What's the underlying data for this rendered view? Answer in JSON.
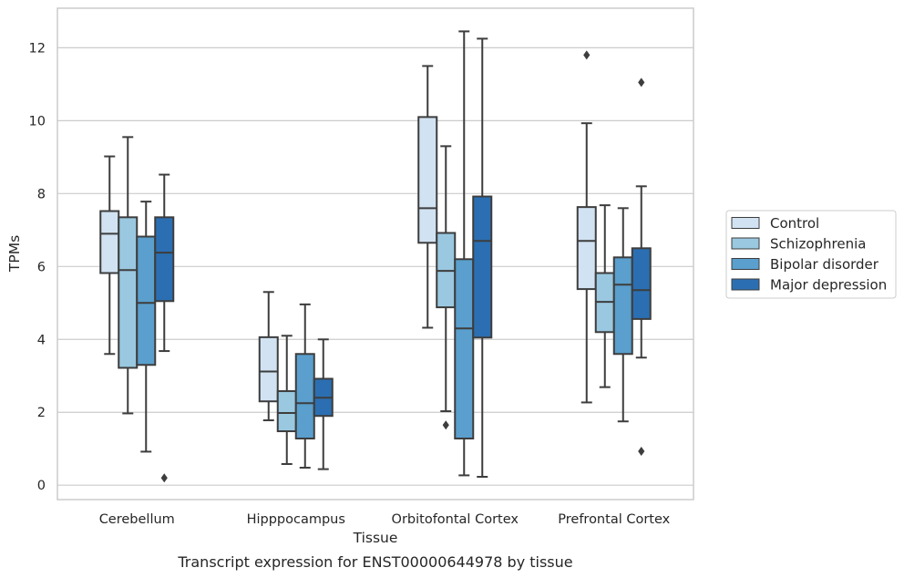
{
  "chart_data": {
    "type": "boxplot",
    "xlabel": "Tissue",
    "ylabel": "TPMs",
    "caption": "Transcript expression for ENST00000644978 by tissue",
    "ylim": [
      -0.4,
      13.1
    ],
    "yticks": [
      0,
      2,
      4,
      6,
      8,
      10,
      12
    ],
    "grid": "horizontal",
    "legend_placement": "right-outside",
    "categories": [
      "Cerebellum",
      "Hipppocampus",
      "Orbitofontal Cortex",
      "Prefrontal Cortex"
    ],
    "series": [
      {
        "name": "Control",
        "color": "#d1e2f2",
        "boxes": [
          {
            "low": 3.6,
            "q1": 5.82,
            "median": 6.9,
            "q3": 7.52,
            "high": 9.02,
            "outliers": []
          },
          {
            "low": 1.78,
            "q1": 2.3,
            "median": 3.12,
            "q3": 4.06,
            "high": 5.3,
            "outliers": []
          },
          {
            "low": 4.32,
            "q1": 6.65,
            "median": 7.6,
            "q3": 10.1,
            "high": 11.5,
            "outliers": []
          },
          {
            "low": 2.27,
            "q1": 5.38,
            "median": 6.7,
            "q3": 7.63,
            "high": 9.93,
            "outliers": [
              11.8
            ]
          }
        ]
      },
      {
        "name": "Schizophrenia",
        "color": "#9ac8e0",
        "boxes": [
          {
            "low": 1.97,
            "q1": 3.22,
            "median": 5.9,
            "q3": 7.35,
            "high": 9.55,
            "outliers": []
          },
          {
            "low": 0.58,
            "q1": 1.48,
            "median": 1.98,
            "q3": 2.58,
            "high": 4.1,
            "outliers": []
          },
          {
            "low": 2.03,
            "q1": 4.88,
            "median": 5.88,
            "q3": 6.92,
            "high": 9.3,
            "outliers": [
              1.65
            ]
          },
          {
            "low": 2.69,
            "q1": 4.2,
            "median": 5.03,
            "q3": 5.82,
            "high": 7.68,
            "outliers": []
          }
        ]
      },
      {
        "name": "Bipolar disorder",
        "color": "#5a9fcd",
        "boxes": [
          {
            "low": 0.92,
            "q1": 3.3,
            "median": 5.0,
            "q3": 6.82,
            "high": 7.78,
            "outliers": []
          },
          {
            "low": 0.48,
            "q1": 1.28,
            "median": 2.25,
            "q3": 3.6,
            "high": 4.96,
            "outliers": []
          },
          {
            "low": 0.27,
            "q1": 1.28,
            "median": 4.3,
            "q3": 6.2,
            "high": 12.45,
            "outliers": []
          },
          {
            "low": 1.75,
            "q1": 3.6,
            "median": 5.5,
            "q3": 6.25,
            "high": 7.6,
            "outliers": []
          }
        ]
      },
      {
        "name": "Major depression",
        "color": "#2b6fb2",
        "boxes": [
          {
            "low": 3.68,
            "q1": 5.05,
            "median": 6.38,
            "q3": 7.35,
            "high": 8.52,
            "outliers": [
              0.2
            ]
          },
          {
            "low": 0.44,
            "q1": 1.9,
            "median": 2.4,
            "q3": 2.92,
            "high": 4.0,
            "outliers": []
          },
          {
            "low": 0.23,
            "q1": 4.05,
            "median": 6.7,
            "q3": 7.92,
            "high": 12.25,
            "outliers": []
          },
          {
            "low": 3.5,
            "q1": 4.56,
            "median": 5.35,
            "q3": 6.5,
            "high": 8.2,
            "outliers": [
              0.93,
              11.05
            ]
          }
        ]
      }
    ]
  }
}
